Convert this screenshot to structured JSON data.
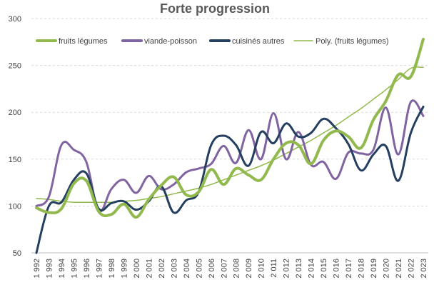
{
  "chart_data": {
    "type": "line",
    "title": "Forte progression",
    "xlabel": "",
    "ylabel": "",
    "ylim": [
      50,
      300
    ],
    "yticks": [
      50,
      100,
      150,
      200,
      250,
      300
    ],
    "grid": true,
    "legend_position": "top",
    "x": [
      "1 992",
      "1 993",
      "1 994",
      "1 995",
      "1 996",
      "1 997",
      "1 998",
      "1 999",
      "2 000",
      "2 001",
      "2 002",
      "2 003",
      "2 004",
      "2 005",
      "2 006",
      "2 007",
      "2 008",
      "2 009",
      "2 010",
      "2 011",
      "2 012",
      "2 013",
      "2 014",
      "2 015",
      "2 016",
      "2 017",
      "2 018",
      "2 019",
      "2 020",
      "2 021",
      "2 022",
      "2 023"
    ],
    "series": [
      {
        "name": "fruits légumes",
        "color": "#92b94d",
        "width": 4,
        "style": "solid",
        "values": [
          98,
          93,
          97,
          124,
          127,
          94,
          91,
          102,
          88,
          107,
          122,
          131,
          112,
          115,
          139,
          123,
          140,
          133,
          128,
          150,
          167,
          165,
          145,
          170,
          180,
          174,
          162,
          192,
          212,
          240,
          238,
          278
        ]
      },
      {
        "name": "viande-poisson",
        "color": "#8064a2",
        "width": 3,
        "style": "solid",
        "values": [
          100,
          110,
          165,
          160,
          147,
          95,
          118,
          128,
          114,
          132,
          118,
          123,
          136,
          140,
          145,
          164,
          146,
          181,
          150,
          199,
          150,
          179,
          144,
          147,
          129,
          157,
          156,
          160,
          205,
          155,
          211,
          196
        ]
      },
      {
        "name": "cuisinés autres",
        "color": "#243f60",
        "width": 3,
        "style": "solid",
        "values": [
          50,
          100,
          104,
          128,
          135,
          97,
          103,
          105,
          96,
          105,
          121,
          93,
          106,
          115,
          165,
          175,
          165,
          143,
          179,
          167,
          188,
          174,
          178,
          193,
          183,
          166,
          138,
          155,
          164,
          127,
          178,
          206
        ]
      },
      {
        "name": "Poly. (fruits légumes)",
        "color": "#92b94d",
        "width": 1.5,
        "style": "trend",
        "values": [
          108,
          107,
          105,
          104,
          104,
          104,
          104,
          105,
          106,
          108,
          110,
          113,
          116,
          119,
          123,
          128,
          133,
          138,
          143,
          149,
          156,
          163,
          170,
          178,
          186,
          195,
          204,
          214,
          224,
          235,
          247,
          248
        ]
      }
    ]
  }
}
